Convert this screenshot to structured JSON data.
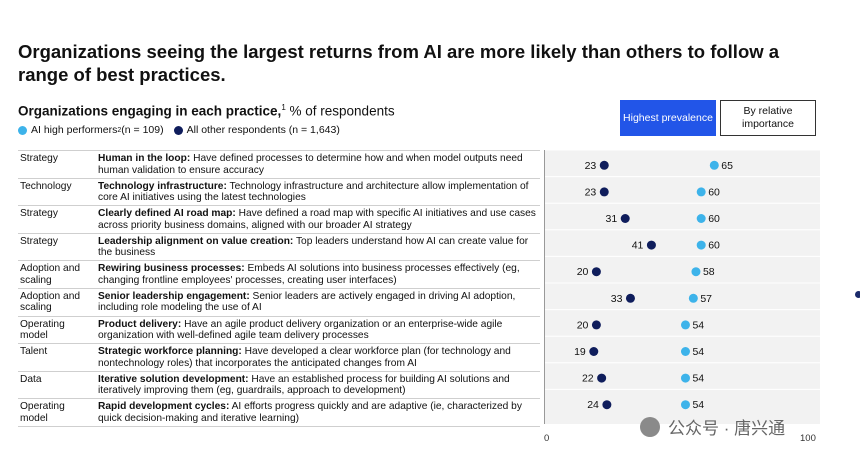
{
  "title": "Organizations seeing the largest returns from AI are more likely than others to follow a range of best practices.",
  "subtitle": {
    "bold": "Organizations engaging in each practice,",
    "sup": "1",
    "rest": " % of respondents"
  },
  "legend": {
    "high": {
      "label": "AI high performers",
      "sup": "2",
      "n": " (n = 109)",
      "color": "#3db3ea"
    },
    "other": {
      "label": "All other respondents (n = 1,643)",
      "color": "#0f1d5c"
    }
  },
  "toggles": {
    "highest": "Highest prevalence",
    "relative": "By relative importance"
  },
  "rows": [
    {
      "category": "Strategy",
      "title": "Human in the loop:",
      "text": " Have defined processes to determine how and when model outputs need human validation to ensure accuracy"
    },
    {
      "category": "Technology",
      "title": "Technology infrastructure:",
      "text": " Technology infrastructure and architecture allow implementation of core AI initiatives using the latest technologies"
    },
    {
      "category": "Strategy",
      "title": "Clearly defined AI road map:",
      "text": " Have defined a road map with specific AI initiatives and use cases across priority business domains, aligned with our broader AI strategy"
    },
    {
      "category": "Strategy",
      "title": "Leadership alignment on value creation:",
      "text": " Top leaders understand how AI can create value for the business"
    },
    {
      "category": "Adoption and scaling",
      "title": "Rewiring business processes:",
      "text": " Embeds AI solutions into business processes effectively (eg, changing frontline employees' processes, creating user interfaces)"
    },
    {
      "category": "Adoption and scaling",
      "title": "Senior leadership engagement:",
      "text": " Senior leaders are actively engaged in driving AI adoption, including role modeling the use of AI"
    },
    {
      "category": "Operating model",
      "title": "Product delivery:",
      "text": " Have an agile product delivery organization or an enterprise-wide agile organization with well-defined agile team delivery processes"
    },
    {
      "category": "Talent",
      "title": "Strategic workforce planning:",
      "text": " Have developed a clear workforce plan (for technology and nontechnology roles) that incorporates the anticipated changes from AI"
    },
    {
      "category": "Data",
      "title": "Iterative solution development:",
      "text": " Have an established process for building AI solutions and iteratively improving them (eg, guardrails, approach to development)"
    },
    {
      "category": "Operating model",
      "title": "Rapid development cycles:",
      "text": " AI efforts progress quickly and are adaptive (ie, characterized by quick decision-making and iterative learning)"
    }
  ],
  "chart_data": {
    "type": "scatter",
    "title": "Organizations engaging in each practice, % of respondents",
    "categories": [
      "Human in the loop",
      "Technology infrastructure",
      "Clearly defined AI road map",
      "Leadership alignment on value creation",
      "Rewiring business processes",
      "Senior leadership engagement",
      "Product delivery",
      "Strategic workforce planning",
      "Iterative solution development",
      "Rapid development cycles"
    ],
    "series": [
      {
        "name": "AI high performers",
        "values": [
          65,
          60,
          60,
          60,
          58,
          57,
          54,
          54,
          54,
          54
        ],
        "color": "#3db3ea"
      },
      {
        "name": "All other respondents",
        "values": [
          23,
          23,
          31,
          41,
          20,
          33,
          20,
          19,
          22,
          24
        ],
        "color": "#0f1d5c"
      }
    ],
    "xlim": [
      0,
      100
    ],
    "tick_labels": [
      "0",
      "100"
    ]
  },
  "watermark": "公众号 · 唐兴通"
}
